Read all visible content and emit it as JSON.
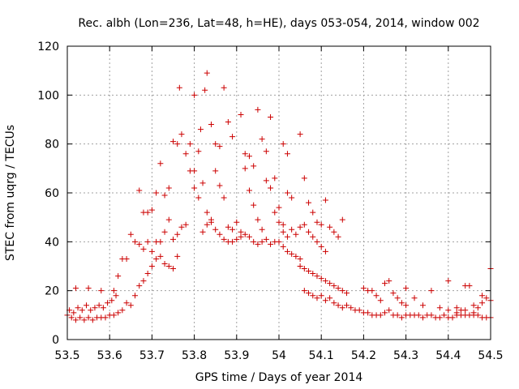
{
  "chart_data": {
    "type": "scatter",
    "title": "Rec. albh (Lon=236, Lat=48, h=HE), days 053-054, 2014, window 002",
    "xlabel": "GPS time / Days of year 2014",
    "ylabel": "STEC from uqrg / TECUs",
    "xlim": [
      53.5,
      54.5
    ],
    "ylim": [
      0,
      120
    ],
    "x_ticks": [
      "53.5",
      "53.6",
      "53.7",
      "53.8",
      "53.9",
      "54",
      "54.1",
      "54.2",
      "54.3",
      "54.4",
      "54.5"
    ],
    "y_ticks": [
      "0",
      "20",
      "40",
      "60",
      "80",
      "100",
      "120"
    ],
    "grid": true,
    "marker": "plus",
    "color": "#cc0000",
    "series": [
      {
        "values": [
          [
            53.5,
            10
          ],
          [
            53.51,
            9
          ],
          [
            53.52,
            8
          ],
          [
            53.53,
            9
          ],
          [
            53.54,
            8
          ],
          [
            53.55,
            9
          ],
          [
            53.56,
            8
          ],
          [
            53.57,
            9
          ],
          [
            53.58,
            9
          ],
          [
            53.59,
            9
          ],
          [
            53.6,
            10
          ],
          [
            53.61,
            10
          ],
          [
            53.62,
            11
          ],
          [
            53.63,
            12
          ],
          [
            53.505,
            12
          ],
          [
            53.515,
            11
          ],
          [
            53.525,
            13
          ],
          [
            53.535,
            12
          ],
          [
            53.545,
            14
          ],
          [
            53.555,
            12
          ],
          [
            53.565,
            13
          ],
          [
            53.575,
            14
          ],
          [
            53.585,
            13
          ],
          [
            53.595,
            15
          ],
          [
            53.605,
            16
          ],
          [
            53.615,
            18
          ],
          [
            53.52,
            21
          ],
          [
            53.55,
            21
          ],
          [
            53.58,
            20
          ],
          [
            53.61,
            20
          ],
          [
            53.62,
            26
          ],
          [
            53.63,
            33
          ],
          [
            53.64,
            33
          ],
          [
            53.65,
            43
          ],
          [
            53.66,
            40
          ],
          [
            53.67,
            39
          ],
          [
            53.68,
            52
          ],
          [
            53.69,
            52
          ],
          [
            53.7,
            53
          ],
          [
            53.64,
            15
          ],
          [
            53.65,
            14
          ],
          [
            53.66,
            18
          ],
          [
            53.67,
            22
          ],
          [
            53.68,
            24
          ],
          [
            53.69,
            27
          ],
          [
            53.7,
            30
          ],
          [
            53.71,
            33
          ],
          [
            53.72,
            34
          ],
          [
            53.73,
            31
          ],
          [
            53.74,
            30
          ],
          [
            53.75,
            29
          ],
          [
            53.76,
            34
          ],
          [
            53.67,
            61
          ],
          [
            53.68,
            37
          ],
          [
            53.69,
            40
          ],
          [
            53.7,
            36
          ],
          [
            53.71,
            40
          ],
          [
            53.72,
            40
          ],
          [
            53.73,
            44
          ],
          [
            53.74,
            49
          ],
          [
            53.75,
            41
          ],
          [
            53.76,
            43
          ],
          [
            53.77,
            46
          ],
          [
            53.78,
            47
          ],
          [
            53.71,
            60
          ],
          [
            53.72,
            72
          ],
          [
            53.73,
            59
          ],
          [
            53.74,
            62
          ],
          [
            53.75,
            81
          ],
          [
            53.76,
            80
          ],
          [
            53.77,
            84
          ],
          [
            53.78,
            76
          ],
          [
            53.79,
            69
          ],
          [
            53.8,
            69
          ],
          [
            53.81,
            77
          ],
          [
            53.765,
            103
          ],
          [
            53.79,
            80
          ],
          [
            53.8,
            100
          ],
          [
            53.815,
            86
          ],
          [
            53.825,
            102
          ],
          [
            53.83,
            109
          ],
          [
            53.84,
            88
          ],
          [
            53.85,
            80
          ],
          [
            53.86,
            79
          ],
          [
            53.87,
            103
          ],
          [
            53.88,
            89
          ],
          [
            53.89,
            83
          ],
          [
            53.8,
            62
          ],
          [
            53.81,
            58
          ],
          [
            53.82,
            64
          ],
          [
            53.83,
            52
          ],
          [
            53.84,
            49
          ],
          [
            53.85,
            69
          ],
          [
            53.86,
            63
          ],
          [
            53.87,
            58
          ],
          [
            53.88,
            46
          ],
          [
            53.89,
            45
          ],
          [
            53.9,
            48
          ],
          [
            53.91,
            44
          ],
          [
            53.82,
            44
          ],
          [
            53.83,
            47
          ],
          [
            53.84,
            48
          ],
          [
            53.85,
            45
          ],
          [
            53.86,
            43
          ],
          [
            53.87,
            41
          ],
          [
            53.88,
            40
          ],
          [
            53.89,
            40
          ],
          [
            53.9,
            41
          ],
          [
            53.91,
            42
          ],
          [
            53.92,
            43
          ],
          [
            53.93,
            42
          ],
          [
            53.91,
            92
          ],
          [
            53.92,
            76
          ],
          [
            53.93,
            75
          ],
          [
            53.94,
            71
          ],
          [
            53.95,
            94
          ],
          [
            53.96,
            82
          ],
          [
            53.97,
            77
          ],
          [
            53.98,
            91
          ],
          [
            53.99,
            66
          ],
          [
            54.0,
            54
          ],
          [
            54.01,
            80
          ],
          [
            54.02,
            76
          ],
          [
            53.92,
            70
          ],
          [
            53.93,
            61
          ],
          [
            53.94,
            55
          ],
          [
            53.95,
            49
          ],
          [
            53.96,
            45
          ],
          [
            53.97,
            65
          ],
          [
            53.98,
            62
          ],
          [
            53.99,
            52
          ],
          [
            54.0,
            48
          ],
          [
            54.01,
            47
          ],
          [
            54.02,
            60
          ],
          [
            54.03,
            58
          ],
          [
            53.94,
            40
          ],
          [
            53.95,
            39
          ],
          [
            53.96,
            40
          ],
          [
            53.97,
            41
          ],
          [
            53.98,
            39
          ],
          [
            53.99,
            40
          ],
          [
            54.0,
            40
          ],
          [
            54.01,
            38
          ],
          [
            54.02,
            36
          ],
          [
            54.03,
            35
          ],
          [
            54.04,
            34
          ],
          [
            54.05,
            33
          ],
          [
            54.01,
            44
          ],
          [
            54.02,
            42
          ],
          [
            54.03,
            45
          ],
          [
            54.04,
            43
          ],
          [
            54.05,
            46
          ],
          [
            54.06,
            47
          ],
          [
            54.07,
            44
          ],
          [
            54.08,
            42
          ],
          [
            54.09,
            40
          ],
          [
            54.1,
            38
          ],
          [
            54.11,
            36
          ],
          [
            54.05,
            84
          ],
          [
            54.06,
            66
          ],
          [
            54.07,
            56
          ],
          [
            54.08,
            52
          ],
          [
            54.09,
            48
          ],
          [
            54.1,
            47
          ],
          [
            54.11,
            57
          ],
          [
            54.12,
            46
          ],
          [
            54.13,
            44
          ],
          [
            54.14,
            42
          ],
          [
            54.15,
            49
          ],
          [
            54.05,
            30
          ],
          [
            54.06,
            29
          ],
          [
            54.07,
            28
          ],
          [
            54.08,
            27
          ],
          [
            54.09,
            26
          ],
          [
            54.1,
            25
          ],
          [
            54.11,
            24
          ],
          [
            54.12,
            23
          ],
          [
            54.13,
            22
          ],
          [
            54.14,
            21
          ],
          [
            54.15,
            20
          ],
          [
            54.16,
            19
          ],
          [
            54.06,
            20
          ],
          [
            54.07,
            19
          ],
          [
            54.08,
            18
          ],
          [
            54.09,
            17
          ],
          [
            54.1,
            18
          ],
          [
            54.11,
            16
          ],
          [
            54.12,
            17
          ],
          [
            54.13,
            15
          ],
          [
            54.14,
            14
          ],
          [
            54.15,
            13
          ],
          [
            54.16,
            14
          ],
          [
            54.17,
            13
          ],
          [
            54.18,
            12
          ],
          [
            54.19,
            12
          ],
          [
            54.2,
            11
          ],
          [
            54.21,
            11
          ],
          [
            54.22,
            10
          ],
          [
            54.23,
            10
          ],
          [
            54.24,
            10
          ],
          [
            54.25,
            11
          ],
          [
            54.26,
            12
          ],
          [
            54.27,
            10
          ],
          [
            54.28,
            10
          ],
          [
            54.29,
            9
          ],
          [
            54.2,
            21
          ],
          [
            54.21,
            20
          ],
          [
            54.22,
            20
          ],
          [
            54.23,
            18
          ],
          [
            54.24,
            16
          ],
          [
            54.25,
            23
          ],
          [
            54.26,
            24
          ],
          [
            54.27,
            19
          ],
          [
            54.28,
            17
          ],
          [
            54.29,
            15
          ],
          [
            54.3,
            14
          ],
          [
            54.3,
            10
          ],
          [
            54.31,
            10
          ],
          [
            54.32,
            10
          ],
          [
            54.33,
            10
          ],
          [
            54.34,
            9
          ],
          [
            54.35,
            10
          ],
          [
            54.36,
            10
          ],
          [
            54.37,
            9
          ],
          [
            54.38,
            9
          ],
          [
            54.39,
            10
          ],
          [
            54.4,
            9
          ],
          [
            54.41,
            9
          ],
          [
            54.3,
            21
          ],
          [
            54.32,
            17
          ],
          [
            54.34,
            14
          ],
          [
            54.36,
            20
          ],
          [
            54.38,
            13
          ],
          [
            54.4,
            12
          ],
          [
            54.42,
            11
          ],
          [
            54.44,
            12
          ],
          [
            54.46,
            14
          ],
          [
            54.48,
            15
          ],
          [
            54.5,
            16
          ],
          [
            54.4,
            24
          ],
          [
            54.42,
            13
          ],
          [
            54.43,
            12
          ],
          [
            54.44,
            22
          ],
          [
            54.45,
            22
          ],
          [
            54.46,
            11
          ],
          [
            54.47,
            13
          ],
          [
            54.48,
            18
          ],
          [
            54.49,
            17
          ],
          [
            54.5,
            29
          ],
          [
            54.42,
            10
          ],
          [
            54.43,
            10
          ],
          [
            54.44,
            10
          ],
          [
            54.45,
            10
          ],
          [
            54.46,
            10
          ],
          [
            54.47,
            10
          ],
          [
            54.48,
            9
          ],
          [
            54.49,
            9
          ],
          [
            54.5,
            9
          ]
        ]
      }
    ]
  }
}
